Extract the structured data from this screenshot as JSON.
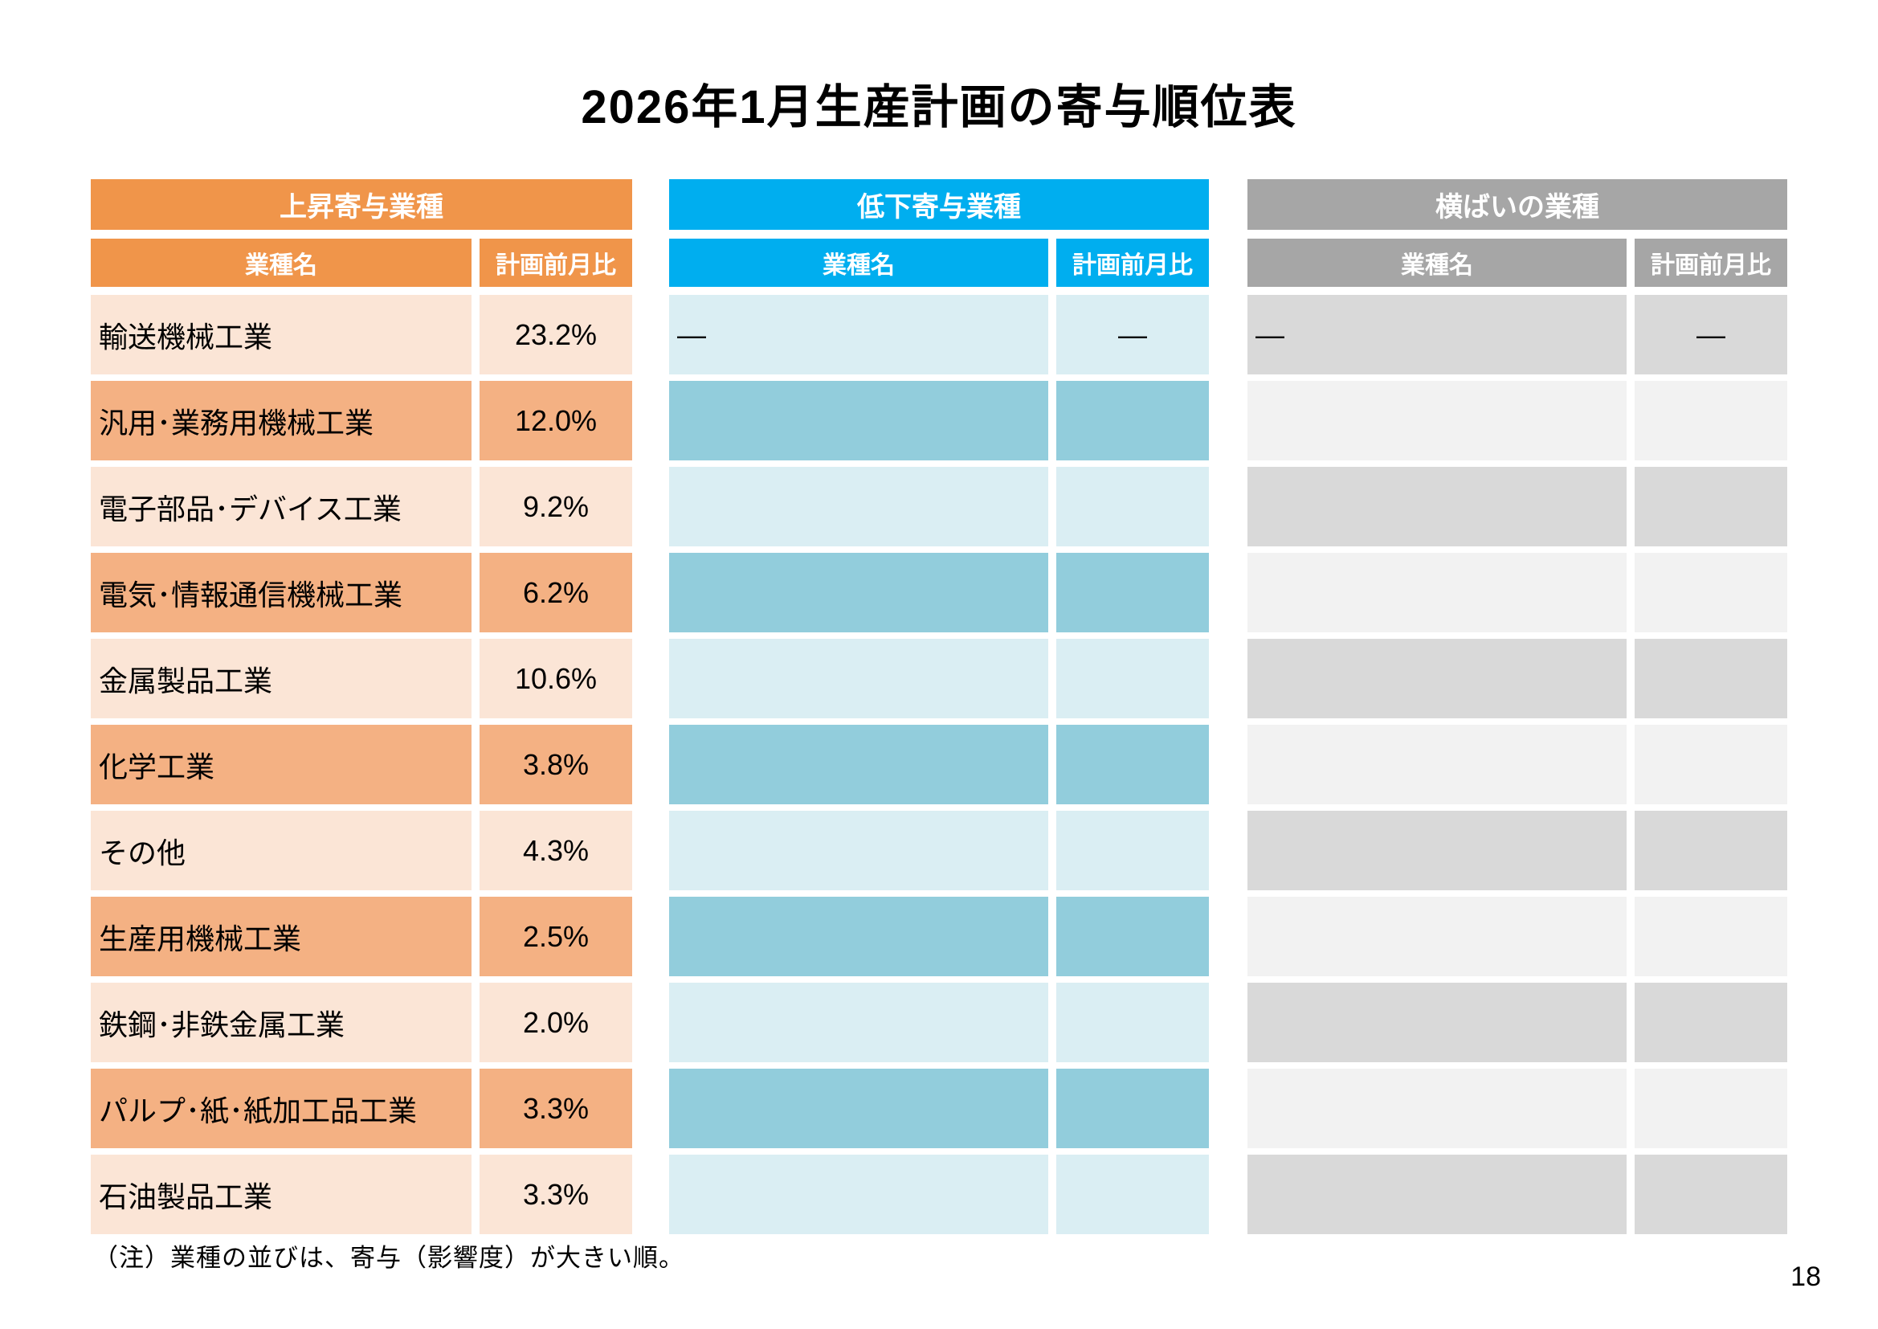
{
  "page": {
    "title": "2026年1月生産計画の寄与順位表",
    "note": "（注）業種の並びは、寄与（影響度）が大きい順。",
    "page_number": "18"
  },
  "tables": [
    {
      "id": "rising-contribution",
      "title": "上昇寄与業種",
      "columns": [
        "業種名",
        "計画前月比"
      ],
      "colors": {
        "header": "#F0954A",
        "row_odd": "#FBE5D6",
        "row_even": "#F4B183"
      },
      "rows": [
        {
          "name": "輸送機械工業",
          "value": "23.2%"
        },
        {
          "name": "汎用･業務用機械工業",
          "value": "12.0%"
        },
        {
          "name": "電子部品･デバイス工業",
          "value": "9.2%"
        },
        {
          "name": "電気･情報通信機械工業",
          "value": "6.2%"
        },
        {
          "name": "金属製品工業",
          "value": "10.6%"
        },
        {
          "name": "化学工業",
          "value": "3.8%"
        },
        {
          "name": "その他",
          "value": "4.3%"
        },
        {
          "name": "生産用機械工業",
          "value": "2.5%"
        },
        {
          "name": "鉄鋼･非鉄金属工業",
          "value": "2.0%"
        },
        {
          "name": "パルプ･紙･紙加工品工業",
          "value": "3.3%"
        },
        {
          "name": "石油製品工業",
          "value": "3.3%"
        }
      ]
    },
    {
      "id": "falling-contribution",
      "title": "低下寄与業種",
      "columns": [
        "業種名",
        "計画前月比"
      ],
      "colors": {
        "header": "#00AEEF",
        "row_odd": "#DAEEF3",
        "row_even": "#92CDDC"
      },
      "rows": [
        {
          "name": "―",
          "value": "―"
        },
        {
          "name": "",
          "value": ""
        },
        {
          "name": "",
          "value": ""
        },
        {
          "name": "",
          "value": ""
        },
        {
          "name": "",
          "value": ""
        },
        {
          "name": "",
          "value": ""
        },
        {
          "name": "",
          "value": ""
        },
        {
          "name": "",
          "value": ""
        },
        {
          "name": "",
          "value": ""
        },
        {
          "name": "",
          "value": ""
        },
        {
          "name": "",
          "value": ""
        }
      ]
    },
    {
      "id": "flat-industries",
      "title": "横ばいの業種",
      "columns": [
        "業種名",
        "計画前月比"
      ],
      "colors": {
        "header": "#A6A6A6",
        "row_odd": "#D9D9D9",
        "row_even": "#F2F2F2"
      },
      "rows": [
        {
          "name": "―",
          "value": "―"
        },
        {
          "name": "",
          "value": ""
        },
        {
          "name": "",
          "value": ""
        },
        {
          "name": "",
          "value": ""
        },
        {
          "name": "",
          "value": ""
        },
        {
          "name": "",
          "value": ""
        },
        {
          "name": "",
          "value": ""
        },
        {
          "name": "",
          "value": ""
        },
        {
          "name": "",
          "value": ""
        },
        {
          "name": "",
          "value": ""
        },
        {
          "name": "",
          "value": ""
        }
      ]
    }
  ]
}
